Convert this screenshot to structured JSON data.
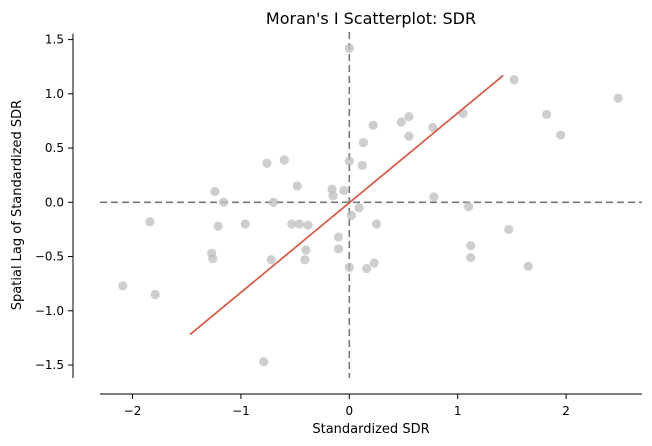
{
  "chart_data": {
    "type": "scatter",
    "title": "Moran's I Scatterplot: SDR",
    "xlabel": "Standardized SDR",
    "ylabel": "Spatial Lag of Standardized SDR",
    "xlim": [
      -2.3,
      2.7
    ],
    "ylim": [
      -1.62,
      1.57
    ],
    "xticks": [
      -2,
      -1,
      0,
      1,
      2
    ],
    "xtick_labels": [
      "−2",
      "−1",
      "0",
      "1",
      "2"
    ],
    "yticks": [
      -1.5,
      -1.0,
      -0.5,
      0.0,
      0.5,
      1.0,
      1.5
    ],
    "ytick_labels": [
      "−1.5",
      "−1.0",
      "−0.5",
      "0.0",
      "0.5",
      "1.0",
      "1.5"
    ],
    "grid": false,
    "reference_lines": {
      "x": 0,
      "y": 0,
      "style": "dashed",
      "color": "#777777"
    },
    "point_color": "#bdbdbd",
    "fit_line": {
      "color": "#d6604d",
      "from": [
        -1.47,
        -1.22
      ],
      "to": [
        1.42,
        1.17
      ]
    },
    "points": [
      {
        "x": 0.0,
        "y": 1.42
      },
      {
        "x": 1.52,
        "y": 1.13
      },
      {
        "x": 2.48,
        "y": 0.96
      },
      {
        "x": 1.05,
        "y": 0.82
      },
      {
        "x": 1.82,
        "y": 0.81
      },
      {
        "x": 0.55,
        "y": 0.79
      },
      {
        "x": 0.48,
        "y": 0.74
      },
      {
        "x": 0.22,
        "y": 0.71
      },
      {
        "x": 0.77,
        "y": 0.69
      },
      {
        "x": 0.55,
        "y": 0.61
      },
      {
        "x": 1.95,
        "y": 0.62
      },
      {
        "x": 0.13,
        "y": 0.55
      },
      {
        "x": -0.6,
        "y": 0.39
      },
      {
        "x": 0.0,
        "y": 0.38
      },
      {
        "x": -0.76,
        "y": 0.36
      },
      {
        "x": 0.12,
        "y": 0.34
      },
      {
        "x": -0.48,
        "y": 0.15
      },
      {
        "x": -0.16,
        "y": 0.12
      },
      {
        "x": -1.24,
        "y": 0.1
      },
      {
        "x": -0.05,
        "y": 0.11
      },
      {
        "x": -0.15,
        "y": 0.06
      },
      {
        "x": 0.78,
        "y": 0.05
      },
      {
        "x": -1.16,
        "y": 0.0
      },
      {
        "x": -0.7,
        "y": 0.0
      },
      {
        "x": 1.1,
        "y": -0.04
      },
      {
        "x": 0.09,
        "y": -0.05
      },
      {
        "x": 0.02,
        "y": -0.12
      },
      {
        "x": -1.84,
        "y": -0.18
      },
      {
        "x": -0.96,
        "y": -0.2
      },
      {
        "x": -0.53,
        "y": -0.2
      },
      {
        "x": -0.46,
        "y": -0.2
      },
      {
        "x": -0.38,
        "y": -0.21
      },
      {
        "x": -1.21,
        "y": -0.22
      },
      {
        "x": 0.25,
        "y": -0.2
      },
      {
        "x": 1.47,
        "y": -0.25
      },
      {
        "x": -0.1,
        "y": -0.32
      },
      {
        "x": 1.12,
        "y": -0.4
      },
      {
        "x": -0.1,
        "y": -0.43
      },
      {
        "x": -0.4,
        "y": -0.44
      },
      {
        "x": -1.27,
        "y": -0.47
      },
      {
        "x": -1.26,
        "y": -0.52
      },
      {
        "x": -0.72,
        "y": -0.53
      },
      {
        "x": -0.41,
        "y": -0.53
      },
      {
        "x": 1.12,
        "y": -0.51
      },
      {
        "x": 0.23,
        "y": -0.56
      },
      {
        "x": 0.0,
        "y": -0.6
      },
      {
        "x": 0.16,
        "y": -0.61
      },
      {
        "x": 1.65,
        "y": -0.59
      },
      {
        "x": -2.09,
        "y": -0.77
      },
      {
        "x": -1.79,
        "y": -0.85
      },
      {
        "x": -0.79,
        "y": -1.47
      }
    ]
  }
}
